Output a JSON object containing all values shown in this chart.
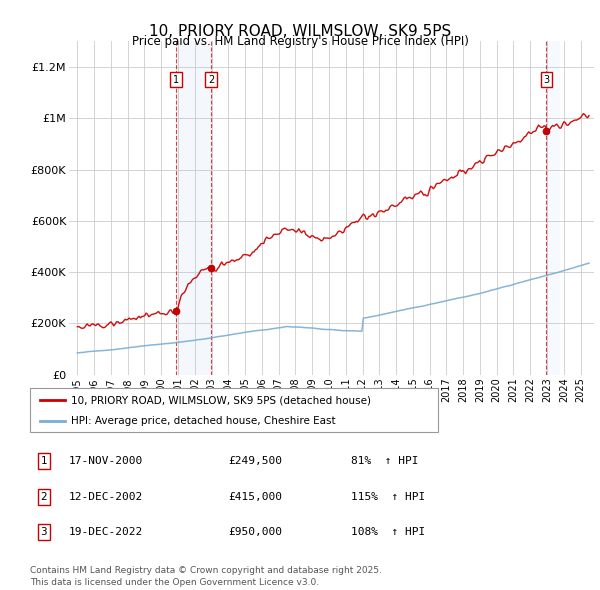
{
  "title": "10, PRIORY ROAD, WILMSLOW, SK9 5PS",
  "subtitle": "Price paid vs. HM Land Registry's House Price Index (HPI)",
  "property_color": "#cc0000",
  "hpi_color": "#7aadd4",
  "transactions": [
    {
      "num": 1,
      "date_label": "17-NOV-2000",
      "price": 249500,
      "hpi_pct": "81%",
      "x_year": 2000.88
    },
    {
      "num": 2,
      "date_label": "12-DEC-2002",
      "price": 415000,
      "hpi_pct": "115%",
      "x_year": 2002.96
    },
    {
      "num": 3,
      "date_label": "19-DEC-2022",
      "price": 950000,
      "hpi_pct": "108%",
      "x_year": 2022.96
    }
  ],
  "legend_property": "10, PRIORY ROAD, WILMSLOW, SK9 5PS (detached house)",
  "legend_hpi": "HPI: Average price, detached house, Cheshire East",
  "footnote": "Contains HM Land Registry data © Crown copyright and database right 2025.\nThis data is licensed under the Open Government Licence v3.0.",
  "xlim_start": 1994.5,
  "xlim_end": 2025.8,
  "ylim": [
    0,
    1300000
  ],
  "yticks": [
    0,
    200000,
    400000,
    600000,
    800000,
    1000000,
    1200000
  ],
  "ytick_labels": [
    "£0",
    "£200K",
    "£400K",
    "£600K",
    "£800K",
    "£1M",
    "£1.2M"
  ],
  "xtick_years": [
    1995,
    1996,
    1997,
    1998,
    1999,
    2000,
    2001,
    2002,
    2003,
    2004,
    2005,
    2006,
    2007,
    2008,
    2009,
    2010,
    2011,
    2012,
    2013,
    2014,
    2015,
    2016,
    2017,
    2018,
    2019,
    2020,
    2021,
    2022,
    2023,
    2024,
    2025
  ]
}
